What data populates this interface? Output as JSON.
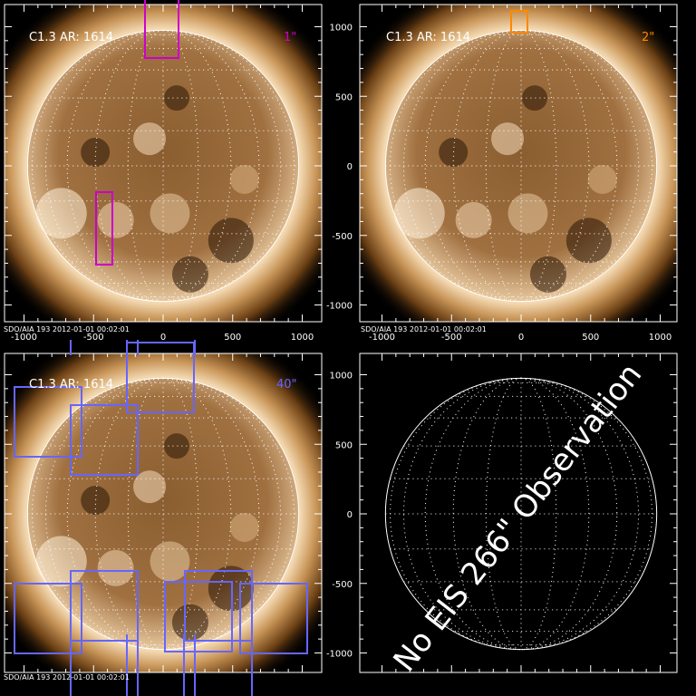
{
  "panels": [
    {
      "label": "C1.3 AR: 1614",
      "fov": "1\"",
      "fov_color": "#cc00cc",
      "footer": "SDO/AIA 193   2012-01-01 00:02:01"
    },
    {
      "label": "C1.3 AR: 1614",
      "fov": "2\"",
      "fov_color": "#ff8800",
      "footer": "SDO/AIA 193   2012-01-01 00:02:01"
    },
    {
      "label": "C1.3 AR: 1614",
      "fov": "40\"",
      "fov_color": "#6666ff",
      "footer": "SDO/AIA 193   2012-01-01 00:02:01"
    },
    {
      "message": "No EIS 266\" Observation"
    }
  ],
  "x_ticks": [
    "-1000",
    "-500",
    "0",
    "500",
    "1000"
  ],
  "y_ticks": [
    "1000",
    "500",
    "0",
    "-500",
    "-1000"
  ],
  "colors": {
    "background": "#000000",
    "solar_disk": "#a0723c",
    "limb": "#ffffff"
  }
}
